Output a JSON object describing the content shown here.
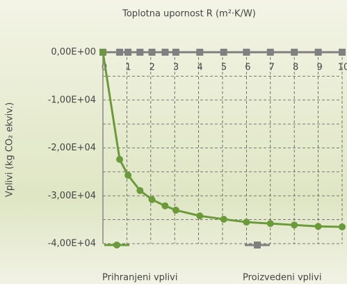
{
  "chart_data": {
    "type": "line",
    "x_label": "Toplotna upornost R (m²·K/W)",
    "y_label": "Vplivi (kg CO₂ ekviv.)",
    "x": [
      0,
      0.7,
      1.05,
      1.55,
      2.05,
      2.6,
      3.05,
      4.05,
      5.05,
      6,
      7,
      8,
      9,
      10
    ],
    "series": [
      {
        "name": "Prihranjeni vplivi",
        "color": "#6b9a3a",
        "marker": "circle",
        "values": [
          0,
          -22400,
          -25700,
          -28900,
          -30800,
          -32100,
          -33000,
          -34200,
          -34900,
          -35500,
          -35800,
          -36100,
          -36400,
          -36500
        ]
      },
      {
        "name": "Proizvedeni vplivi",
        "color": "#808080",
        "marker": "square",
        "values": [
          0,
          0,
          0,
          0,
          0,
          0,
          0,
          0,
          0,
          0,
          0,
          0,
          0,
          0
        ]
      }
    ],
    "xlim": [
      0,
      10
    ],
    "xticks": [
      0,
      1,
      2,
      3,
      4,
      5,
      6,
      7,
      8,
      9,
      10
    ],
    "ylim": [
      -40000,
      0
    ],
    "yticks": [
      {
        "value": 0,
        "label": "0,00E+00"
      },
      {
        "value": -10000,
        "label": "-1,00E+04"
      },
      {
        "value": -20000,
        "label": "-2,00E+04"
      },
      {
        "value": -30000,
        "label": "-3,00E+04"
      },
      {
        "value": -40000,
        "label": "-4,00E+04"
      }
    ],
    "minor_yticks": [
      -5000,
      -15000,
      -25000,
      -35000
    ],
    "grid": true,
    "legend": "bottom"
  }
}
